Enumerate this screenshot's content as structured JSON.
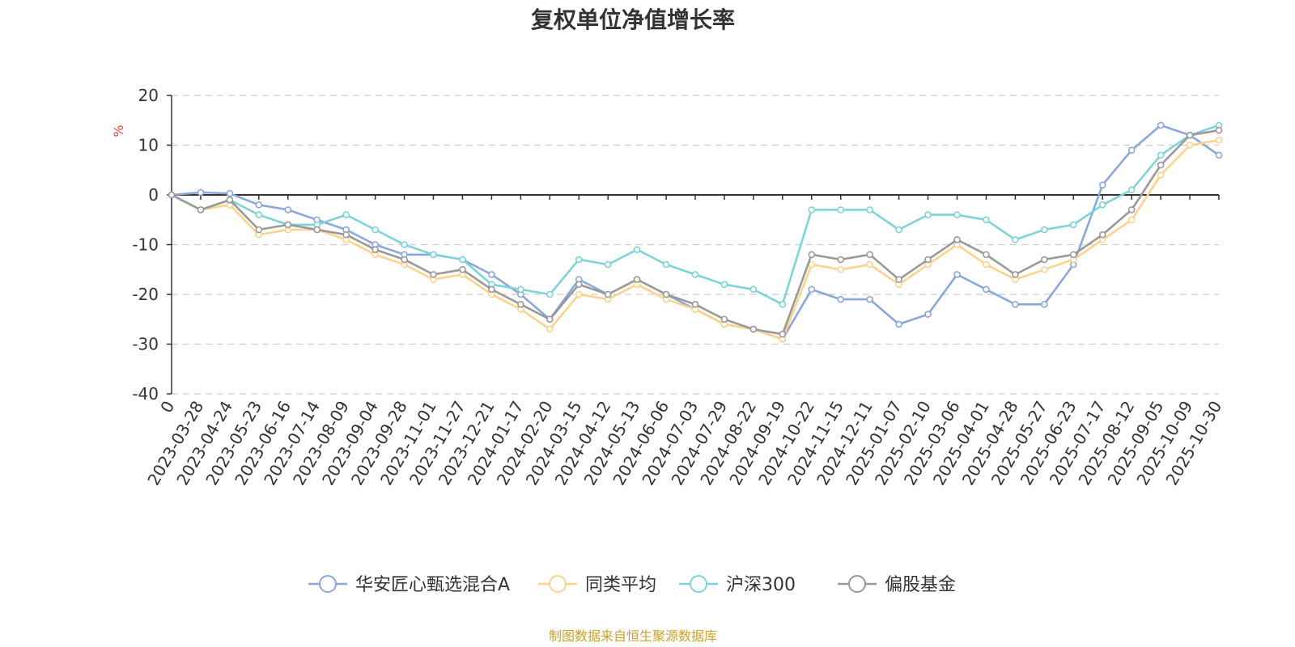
{
  "chart_data": {
    "type": "line",
    "title": "复权单位净值增长率",
    "ylabel": "%",
    "xlabel": "",
    "ylim": [
      -40,
      20
    ],
    "yticks": [
      20,
      10,
      0,
      -10,
      -20,
      -30,
      -40
    ],
    "categories": [
      "0",
      "2023-03-28",
      "2023-04-24",
      "2023-05-23",
      "2023-06-16",
      "2023-07-14",
      "2023-08-09",
      "2023-09-04",
      "2023-09-28",
      "2023-11-01",
      "2023-11-27",
      "2023-12-21",
      "2024-01-17",
      "2024-02-20",
      "2024-03-15",
      "2024-04-12",
      "2024-05-13",
      "2024-06-06",
      "2024-07-03",
      "2024-07-29",
      "2024-08-22",
      "2024-09-19",
      "2024-10-22",
      "2024-11-15",
      "2024-12-11",
      "2025-01-07",
      "2025-02-10",
      "2025-03-06",
      "2025-04-01",
      "2025-04-28",
      "2025-05-27",
      "2025-06-23",
      "2025-07-17",
      "2025-08-12",
      "2025-09-05",
      "2025-10-09",
      "2025-10-30"
    ],
    "grid": true,
    "legend_position": "bottom",
    "source": "制图数据来自恒生聚源数据库",
    "series": [
      {
        "name": "华安匠心甄选混合A",
        "color": "#8aa8d8",
        "values": [
          0,
          0.5,
          0.3,
          -2,
          -3,
          -5,
          -7,
          -10,
          -12,
          -12,
          -13,
          -16,
          -20,
          -25,
          -17,
          -20,
          -17,
          -20,
          -23,
          -26,
          -27,
          -29,
          -19,
          -21,
          -21,
          -26,
          -24,
          -16,
          -19,
          -22,
          -22,
          -14,
          2,
          9,
          14,
          12,
          8
        ]
      },
      {
        "name": "同类平均",
        "color": "#fdd28a",
        "values": [
          0,
          -3,
          -2,
          -8,
          -7,
          -7,
          -9,
          -12,
          -14,
          -17,
          -16,
          -20,
          -23,
          -27,
          -20,
          -21,
          -18,
          -21,
          -23,
          -26,
          -27,
          -29,
          -14,
          -15,
          -14,
          -18,
          -14,
          -10,
          -14,
          -17,
          -15,
          -13,
          -9,
          -5,
          4,
          10,
          11
        ]
      },
      {
        "name": "沪深300",
        "color": "#7dd3d8",
        "values": [
          0,
          -3,
          -1,
          -4,
          -6,
          -6,
          -4,
          -7,
          -10,
          -12,
          -13,
          -18,
          -19,
          -20,
          -13,
          -14,
          -11,
          -14,
          -16,
          -18,
          -19,
          -22,
          -3,
          -3,
          -3,
          -7,
          -4,
          -4,
          -5,
          -9,
          -7,
          -6,
          -2,
          1,
          8,
          12,
          14
        ]
      },
      {
        "name": "偏股基金",
        "color": "#999999",
        "values": [
          0,
          -3,
          -1,
          -7,
          -6,
          -7,
          -8,
          -11,
          -13,
          -16,
          -15,
          -19,
          -22,
          -25,
          -18,
          -20,
          -17,
          -20,
          -22,
          -25,
          -27,
          -28,
          -12,
          -13,
          -12,
          -17,
          -13,
          -9,
          -12,
          -16,
          -13,
          -12,
          -8,
          -3,
          6,
          12,
          13
        ]
      }
    ]
  }
}
